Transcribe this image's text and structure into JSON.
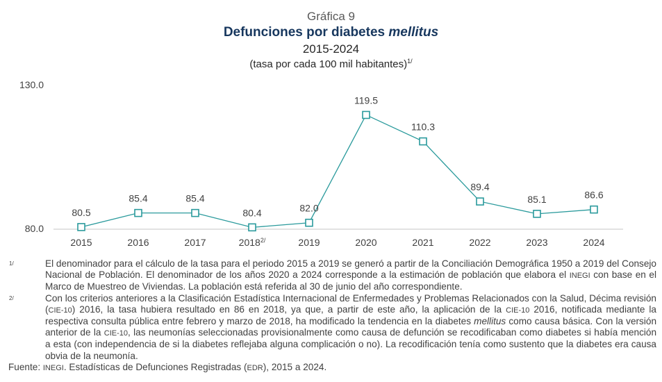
{
  "header": {
    "label": "Gráfica 9",
    "title_main": "Defunciones por diabetes ",
    "title_italic": "mellitus",
    "period": "2015-2024",
    "unit": "(tasa por cada 100 mil habitantes)",
    "unit_note": "1/"
  },
  "chart_data": {
    "type": "line",
    "title": "Defunciones por diabetes mellitus",
    "subtitle": "2015-2024 (tasa por cada 100 mil habitantes)",
    "xlabel": "",
    "ylabel": "",
    "categories": [
      "2015",
      "2016",
      "2017",
      "2018",
      "2019",
      "2020",
      "2021",
      "2022",
      "2023",
      "2024"
    ],
    "category_notes": [
      "",
      "",
      "",
      "2/",
      "",
      "",
      "",
      "",
      "",
      ""
    ],
    "series": [
      {
        "name": "Tasa por cada 100 mil habitantes",
        "values": [
          80.5,
          85.4,
          85.4,
          80.4,
          82.0,
          119.5,
          110.3,
          89.4,
          85.1,
          86.6
        ],
        "labels": [
          "80.5",
          "85.4",
          "85.4",
          "80.4",
          "82.0",
          "119.5",
          "110.3",
          "89.4",
          "85.1",
          "86.6"
        ],
        "color": "#2a9a9c",
        "marker": "hollow-square"
      }
    ],
    "ylim": [
      80.0,
      130.0
    ],
    "y_ticks": [
      "80.0",
      "130.0"
    ],
    "grid": false,
    "legend": "none"
  },
  "notes": {
    "note1_mark": "1/",
    "note1_a": "El denominador para el cálculo de la tasa para el periodo 2015 a 2019 se generó a partir de la Conciliación Demográfica 1950 a 2019 del Consejo Nacional de Población. El denominador de los años 2020 a 2024 corresponde a la estimación de población que elabora el ",
    "note1_inegi": "INEGI",
    "note1_b": " con base en el Marco de Muestreo de Viviendas. La población está referida al 30 de junio del año correspondiente.",
    "note2_mark": "2/",
    "note2_a": "Con los criterios anteriores a la Clasificación Estadística Internacional de Enfermedades y Problemas Relacionados con la Salud, Décima revisión (",
    "note2_cie1": "CIE-10",
    "note2_b": ") 2016, la tasa hubiera resultado en 86 en 2018, ya que, a partir de este año, la aplicación de la ",
    "note2_cie2": "CIE-10",
    "note2_c": " 2016, notificada mediante la respectiva consulta pública entre febrero y marzo de 2018, ha modificado la tendencia en la diabetes ",
    "note2_italic": "mellitus",
    "note2_d": " como causa básica. Con la versión anterior de la ",
    "note2_cie3": "CIE-10",
    "note2_e": ", las neumonías seleccionadas provisionalmente como causa de defunción se recodificaban como diabetes si había mención a esta (con independencia de si la diabetes reflejaba alguna complicación o no). La recodificación tenía como sustento que la diabetes era causa obvia de la neumonía.",
    "source_label": "Fuente: ",
    "source_inegi": "INEGI",
    "source_a": ". Estadísticas de Defunciones Registradas (",
    "source_edr": "EDR",
    "source_b": "), 2015 a 2024."
  }
}
